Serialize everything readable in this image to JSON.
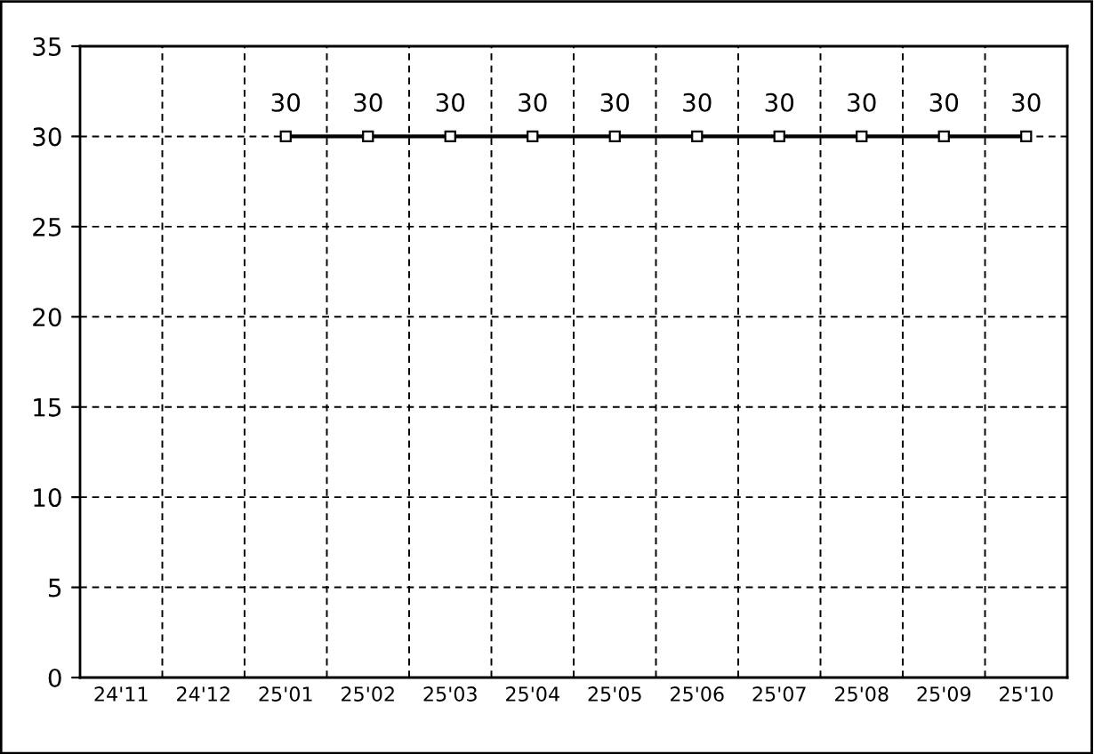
{
  "chart_data": {
    "type": "line",
    "categories": [
      "24'11",
      "24'12",
      "25'01",
      "25'02",
      "25'03",
      "25'04",
      "25'05",
      "25'06",
      "25'07",
      "25'08",
      "25'09",
      "25'10"
    ],
    "series": [
      {
        "color": "#000000",
        "values": [
          null,
          null,
          30,
          30,
          30,
          30,
          30,
          30,
          30,
          30,
          30,
          30
        ]
      }
    ],
    "ylim": [
      0,
      35
    ],
    "yticks": [
      0,
      5,
      10,
      15,
      20,
      25,
      30,
      35
    ],
    "grid": true,
    "marker": "square",
    "line_style": "solid",
    "data_labels": true
  }
}
